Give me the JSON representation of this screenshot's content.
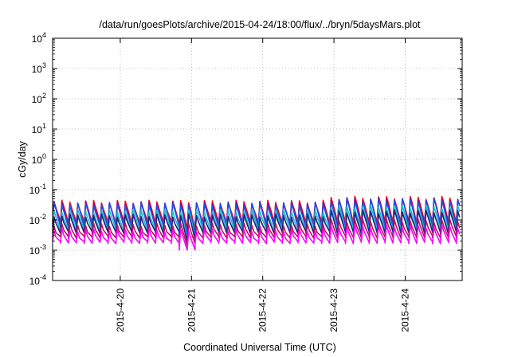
{
  "chart_data": {
    "type": "line",
    "title": "/data/run/goesPlots/archive/2015-04-24/18:00/flux/../bryn/5daysMars.plot",
    "xlabel": "Coordinated Universal Time (UTC)",
    "ylabel": "cGy/day",
    "yscale": "log",
    "ylim": [
      0.0001,
      10000
    ],
    "xlim_days": [
      -0.95,
      4.8
    ],
    "y_ticks": [
      {
        "base": "10",
        "exp": "-4"
      },
      {
        "base": "10",
        "exp": "-3"
      },
      {
        "base": "10",
        "exp": "-2"
      },
      {
        "base": "10",
        "exp": "-1"
      },
      {
        "base": "10",
        "exp": "0"
      },
      {
        "base": "10",
        "exp": "1"
      },
      {
        "base": "10",
        "exp": "2"
      },
      {
        "base": "10",
        "exp": "3"
      },
      {
        "base": "10",
        "exp": "4"
      }
    ],
    "x_ticks": [
      "2015-4-20",
      "2015-4-21",
      "2015-4-22",
      "2015-4-23",
      "2015-4-24"
    ],
    "grid": true,
    "legend": "none",
    "cycle_hours": 2.667,
    "series": [
      {
        "color": "#ff1010",
        "peak": 0.04,
        "trough": 0.0085
      },
      {
        "color": "#8a0a8a",
        "peak": 0.036,
        "trough": 0.007
      },
      {
        "color": "#2050e0",
        "peak": 0.033,
        "trough": 0.006
      },
      {
        "color": "#20c0c8",
        "peak": 0.02,
        "trough": 0.0045
      },
      {
        "color": "#202080",
        "peak": 0.014,
        "trough": 0.0038
      },
      {
        "color": "#c01060",
        "peak": 0.007,
        "trough": 0.0027
      },
      {
        "color": "#ff00ff",
        "peak": 0.0045,
        "trough": 0.0018
      }
    ]
  }
}
